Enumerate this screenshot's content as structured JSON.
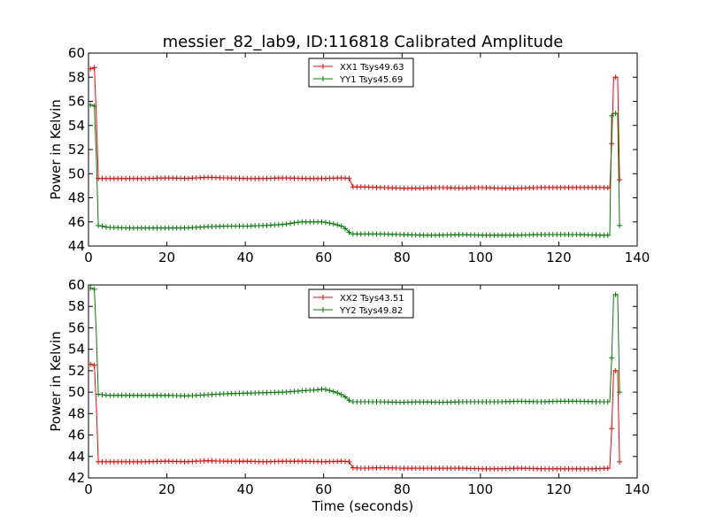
{
  "title": "messier_82_lab9, ID:116818 Calibrated Amplitude",
  "xlabel": "Time (seconds)",
  "chart_data": [
    {
      "type": "line",
      "title": "messier_82_lab9, ID:116818 Calibrated Amplitude",
      "xlabel": "",
      "ylabel": "Power in Kelvin",
      "xlim": [
        0,
        140
      ],
      "ylim": [
        44,
        60
      ],
      "xticks": [
        0,
        20,
        40,
        60,
        80,
        100,
        120,
        140
      ],
      "yticks": [
        44,
        46,
        48,
        50,
        52,
        54,
        56,
        58,
        60
      ],
      "legend_position": "top-center",
      "series": [
        {
          "name": "XX1 Tsys49.63",
          "color": "#ff0000",
          "x": [
            0.5,
            1,
            1.5,
            2,
            2.5,
            5,
            10,
            15,
            20,
            25,
            30,
            35,
            40,
            45,
            50,
            55,
            60,
            65,
            66.5,
            67.5,
            70,
            75,
            80,
            85,
            90,
            95,
            100,
            105,
            110,
            115,
            120,
            125,
            130,
            132,
            133,
            133.5,
            134,
            135,
            135.5
          ],
          "y": [
            58.7,
            58.7,
            58.8,
            54.8,
            49.6,
            49.6,
            49.6,
            49.6,
            49.65,
            49.6,
            49.7,
            49.65,
            49.6,
            49.6,
            49.65,
            49.6,
            49.6,
            49.65,
            49.6,
            48.9,
            48.9,
            48.85,
            48.8,
            48.8,
            48.85,
            48.8,
            48.85,
            48.8,
            48.8,
            48.85,
            48.85,
            48.85,
            48.85,
            48.85,
            48.8,
            52.5,
            58.0,
            58.0,
            49.5
          ]
        },
        {
          "name": "YY1 Tsys45.69",
          "color": "#008000",
          "x": [
            0.5,
            1,
            1.5,
            2,
            2.5,
            5,
            10,
            15,
            20,
            25,
            30,
            35,
            40,
            45,
            50,
            54,
            57,
            60,
            63,
            65,
            67,
            70,
            75,
            80,
            85,
            90,
            95,
            100,
            105,
            110,
            115,
            120,
            125,
            130,
            133,
            133.5,
            134,
            135,
            135.5
          ],
          "y": [
            55.7,
            55.7,
            55.6,
            51.3,
            45.7,
            45.55,
            45.5,
            45.5,
            45.5,
            45.5,
            45.6,
            45.65,
            45.65,
            45.7,
            45.8,
            46.0,
            46.0,
            46.0,
            45.8,
            45.6,
            45.0,
            45.0,
            45.0,
            44.95,
            44.9,
            44.9,
            44.95,
            44.9,
            44.9,
            44.9,
            44.95,
            44.95,
            44.95,
            44.9,
            44.9,
            54.8,
            55.0,
            55.0,
            45.7
          ]
        }
      ]
    },
    {
      "type": "line",
      "title": "",
      "xlabel": "Time (seconds)",
      "ylabel": "Power in Kelvin",
      "xlim": [
        0,
        140
      ],
      "ylim": [
        42,
        60
      ],
      "xticks": [
        0,
        20,
        40,
        60,
        80,
        100,
        120,
        140
      ],
      "yticks": [
        42,
        44,
        46,
        48,
        50,
        52,
        54,
        56,
        58,
        60
      ],
      "legend_position": "top-center",
      "series": [
        {
          "name": "XX2 Tsys43.51",
          "color": "#ff0000",
          "x": [
            0.5,
            1,
            1.5,
            2,
            2.5,
            5,
            10,
            15,
            20,
            25,
            30,
            35,
            40,
            45,
            50,
            55,
            60,
            65,
            66.5,
            67.5,
            70,
            75,
            80,
            85,
            90,
            95,
            100,
            105,
            110,
            115,
            120,
            125,
            130,
            132,
            133,
            133.5,
            134,
            135,
            135.5
          ],
          "y": [
            52.6,
            52.6,
            52.5,
            48.7,
            43.5,
            43.5,
            43.5,
            43.5,
            43.55,
            43.5,
            43.6,
            43.55,
            43.55,
            43.5,
            43.55,
            43.55,
            43.5,
            43.55,
            43.5,
            42.95,
            42.9,
            42.95,
            42.9,
            42.9,
            42.9,
            42.9,
            42.85,
            42.85,
            42.9,
            42.85,
            42.85,
            42.85,
            42.85,
            42.9,
            42.9,
            46.6,
            52.0,
            52.0,
            43.5
          ]
        },
        {
          "name": "YY2 Tsys49.82",
          "color": "#008000",
          "x": [
            0.5,
            1,
            1.5,
            2,
            2.5,
            5,
            10,
            15,
            20,
            25,
            30,
            35,
            40,
            45,
            50,
            55,
            58,
            60,
            63,
            65,
            67,
            70,
            75,
            80,
            85,
            90,
            95,
            100,
            105,
            110,
            115,
            120,
            125,
            130,
            133,
            133.5,
            134,
            135,
            135.5
          ],
          "y": [
            59.7,
            59.7,
            59.6,
            55.3,
            49.8,
            49.7,
            49.7,
            49.7,
            49.7,
            49.65,
            49.75,
            49.85,
            49.9,
            49.95,
            50.0,
            50.15,
            50.2,
            50.3,
            50.0,
            49.7,
            49.1,
            49.1,
            49.1,
            49.05,
            49.1,
            49.05,
            49.1,
            49.1,
            49.1,
            49.15,
            49.1,
            49.15,
            49.15,
            49.1,
            49.1,
            53.2,
            59.1,
            59.1,
            50.0
          ]
        }
      ]
    }
  ]
}
